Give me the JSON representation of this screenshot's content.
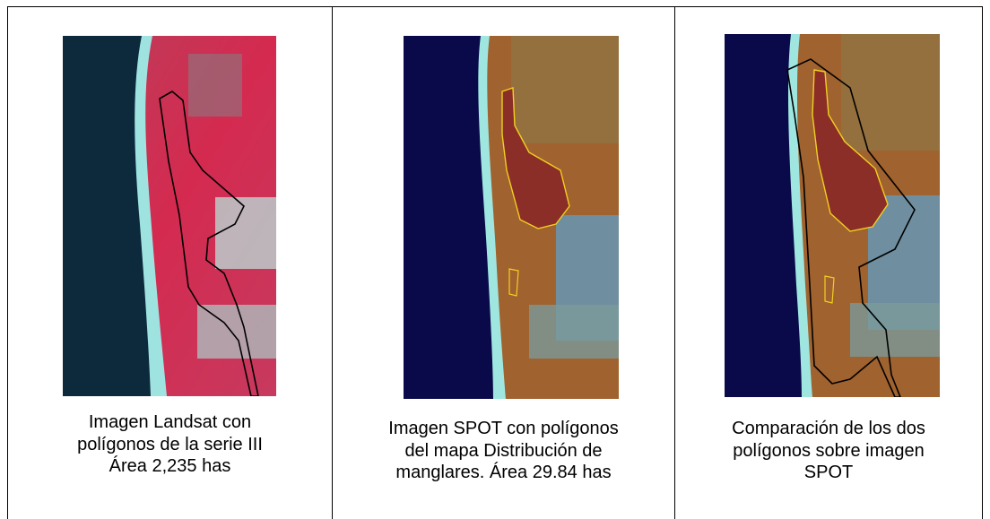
{
  "table": {
    "cells": [
      {
        "caption": [
          "Imagen Landsat con",
          "polígonos de la serie III",
          "Área 2,235 has"
        ]
      },
      {
        "caption": [
          "Imagen SPOT con polígonos",
          "del mapa Distribución de",
          "manglares. Área  29.84 has"
        ]
      },
      {
        "caption": [
          "Comparación de los dos",
          "polígonos sobre imagen",
          "SPOT"
        ]
      }
    ]
  }
}
